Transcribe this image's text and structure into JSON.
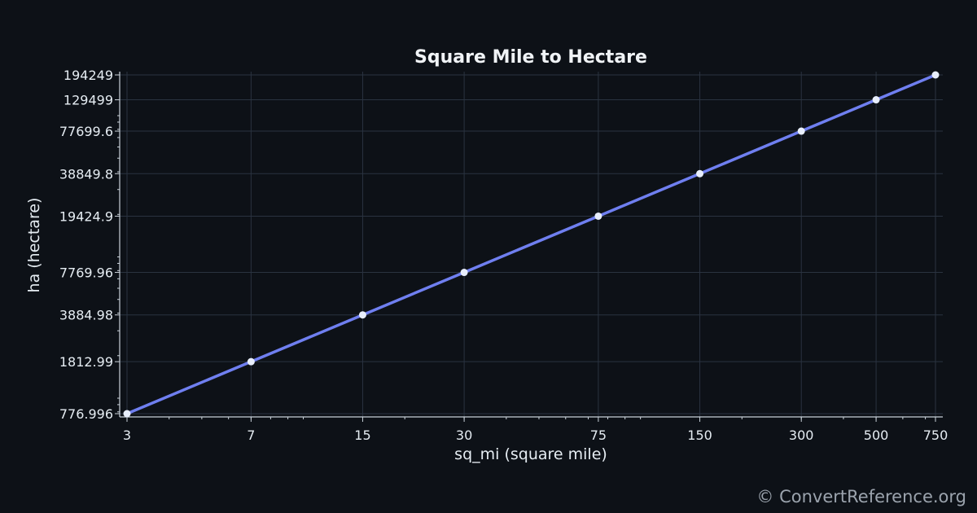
{
  "chart_data": {
    "type": "line",
    "title": "Square Mile to Hectare",
    "xlabel": "sq_mi (square mile)",
    "ylabel": "ha (hectare)",
    "x_scale": "log",
    "y_scale": "log",
    "grid": true,
    "x": [
      3,
      7,
      15,
      30,
      75,
      150,
      300,
      500,
      750
    ],
    "series": [
      {
        "values": [
          776.996,
          1812.99,
          3884.98,
          7769.96,
          19424.9,
          38849.8,
          77699.6,
          129499,
          194249
        ]
      }
    ],
    "x_ticks": [
      "3",
      "7",
      "15",
      "30",
      "75",
      "150",
      "300",
      "500",
      "750"
    ],
    "y_ticks": [
      "776.996",
      "1812.99",
      "3884.98",
      "7769.96",
      "19424.9",
      "38849.8",
      "77699.6",
      "129499",
      "194249"
    ],
    "xlim": [
      3,
      750
    ],
    "ylim": [
      776.996,
      194249
    ],
    "line_color": "#6f7ff0",
    "marker_color": "#e8eefc"
  },
  "watermark": "© ConvertReference.org"
}
